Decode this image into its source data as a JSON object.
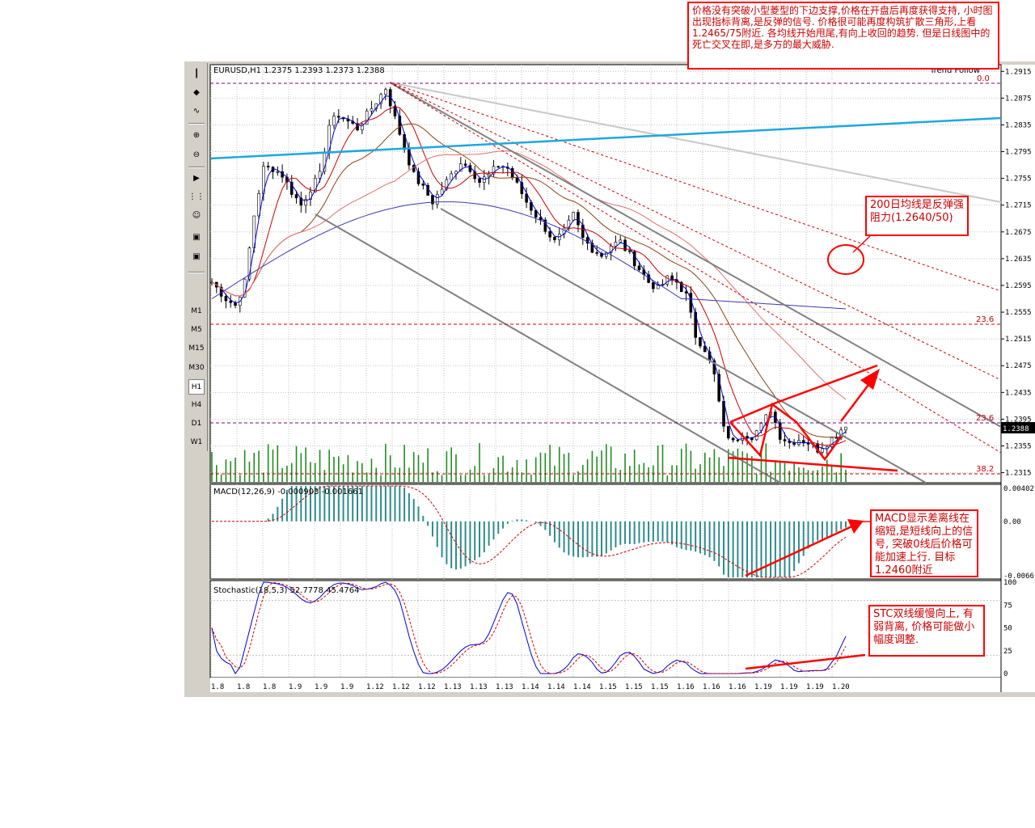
{
  "chart_data": [
    {
      "type": "candlestick",
      "title": "EURUSD,H1  1.2375 1.2393 1.2373 1.2388",
      "symbol": "EURUSD",
      "timeframe": "H1",
      "ohlc_header": [
        "1.2375",
        "1.2393",
        "1.2373",
        "1.2388"
      ],
      "y_ticks": [
        "1.2915",
        "1.2875",
        "1.2835",
        "1.2795",
        "1.2755",
        "1.2715",
        "1.2675",
        "1.2635",
        "1.2595",
        "1.2555",
        "1.2515",
        "1.2475",
        "1.2435",
        "1.2395",
        "1.2355",
        "1.2315"
      ],
      "ylim": [
        1.23,
        1.2925
      ],
      "current_price": "1.2388",
      "x_ticks": [
        "1.8",
        "1.8",
        "1.8",
        "1.9",
        "1.9",
        "1.9",
        "1.12",
        "1.12",
        "1.12",
        "1.13",
        "1.13",
        "1.13",
        "1.14",
        "1.14",
        "1.14",
        "1.15",
        "1.15",
        "1.15",
        "1.16",
        "1.16",
        "1.16",
        "1.19",
        "1.19",
        "1.19",
        "1.20"
      ],
      "fib_labels": [
        "0.0",
        "23.6",
        "23.6",
        "38.2"
      ],
      "trend_label": "Trend Follow",
      "close_path": [
        [
          0,
          1.26
        ],
        [
          3,
          1.2575
        ],
        [
          5,
          1.2565
        ],
        [
          7,
          1.26
        ],
        [
          9,
          1.27
        ],
        [
          11,
          1.277
        ],
        [
          13,
          1.277
        ],
        [
          15,
          1.276
        ],
        [
          17,
          1.2735
        ],
        [
          19,
          1.2715
        ],
        [
          21,
          1.274
        ],
        [
          23,
          1.276
        ],
        [
          25,
          1.2835
        ],
        [
          27,
          1.285
        ],
        [
          29,
          1.284
        ],
        [
          31,
          1.283
        ],
        [
          33,
          1.285
        ],
        [
          35,
          1.287
        ],
        [
          37,
          1.289
        ],
        [
          39,
          1.2845
        ],
        [
          41,
          1.28
        ],
        [
          43,
          1.276
        ],
        [
          45,
          1.274
        ],
        [
          47,
          1.272
        ],
        [
          49,
          1.274
        ],
        [
          51,
          1.276
        ],
        [
          53,
          1.278
        ],
        [
          55,
          1.277
        ],
        [
          57,
          1.275
        ],
        [
          59,
          1.276
        ],
        [
          61,
          1.2775
        ],
        [
          63,
          1.277
        ],
        [
          65,
          1.2745
        ],
        [
          67,
          1.272
        ],
        [
          69,
          1.27
        ],
        [
          71,
          1.268
        ],
        [
          73,
          1.266
        ],
        [
          75,
          1.2675
        ],
        [
          77,
          1.27
        ],
        [
          79,
          1.2665
        ],
        [
          81,
          1.265
        ],
        [
          83,
          1.264
        ],
        [
          85,
          1.2655
        ],
        [
          87,
          1.266
        ],
        [
          89,
          1.264
        ],
        [
          91,
          1.262
        ],
        [
          93,
          1.26
        ],
        [
          95,
          1.259
        ],
        [
          97,
          1.2605
        ],
        [
          99,
          1.26
        ],
        [
          101,
          1.258
        ],
        [
          103,
          1.252
        ],
        [
          105,
          1.25
        ],
        [
          107,
          1.246
        ],
        [
          109,
          1.238
        ],
        [
          111,
          1.236
        ],
        [
          113,
          1.2375
        ],
        [
          115,
          1.237
        ],
        [
          117,
          1.2385
        ],
        [
          119,
          1.241
        ],
        [
          121,
          1.237
        ],
        [
          123,
          1.236
        ],
        [
          125,
          1.2365
        ],
        [
          127,
          1.236
        ],
        [
          129,
          1.235
        ],
        [
          131,
          1.236
        ],
        [
          133,
          1.2372
        ],
        [
          135,
          1.2388
        ]
      ],
      "bar_count": 136,
      "x_tick_every": 5.6
    },
    {
      "type": "histogram",
      "title": "MACD(12,26,9)  -0.000903  -0.001661",
      "y_ticks": [
        "0.00402",
        "0.00",
        "-0.0066"
      ],
      "ylim": [
        -0.007,
        0.0045
      ]
    },
    {
      "type": "line",
      "title": "Stochastic(18,5,3)  52.7778  45.4764",
      "y_ticks": [
        "100",
        "75",
        "50",
        "25",
        "0"
      ],
      "ylim": [
        0,
        100
      ]
    }
  ],
  "annotations": {
    "top": "价格没有突破小型菱型的下边支撑,价格在开盘后再度获得支持, 小时图出现指标背离,是反弹的信号. 价格很可能再度构筑扩散三角形,上看1.2465/75附近. 各均线开始甩尾,有向上收回的趋势. 但是日线图中的死亡交叉在即,是多方的最大威胁.",
    "ma200": "200日均线是反弹强阻力(1.2640/50)",
    "macd": "MACD显示差离线在缩短,是短线向上的信号, 突破0线后价格可能加速上行. 目标1.2460附近",
    "stc": "STC双线缓慢向上, 有弱背离, 价格可能做小幅度调整."
  },
  "toolbar": {
    "timeframes": [
      "M1",
      "M5",
      "M15",
      "M30",
      "H1",
      "H4",
      "D1",
      "W1"
    ],
    "active_timeframe": "H1"
  },
  "colors": {
    "candle": "#000000",
    "ma_blue": "#0000cc",
    "ma_red": "#cc0000",
    "ma_brown": "#8b4513",
    "ma200": "#3a3ab0",
    "volume": "#228b22",
    "macd_hist": "#2e8b8b",
    "annotation": "#ff0000",
    "cyan_line": "#1ea7e1"
  }
}
